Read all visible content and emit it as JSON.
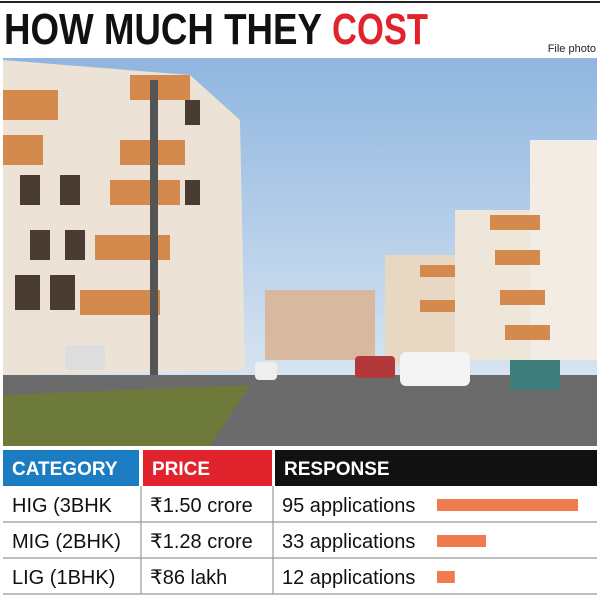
{
  "title": {
    "part1": "HOW MUCH THEY",
    "part2": "COST"
  },
  "photo_credit": "File photo",
  "table": {
    "headers": [
      "CATEGORY",
      "PRICE",
      "RESPONSE"
    ],
    "rows": [
      {
        "category": "HIG (3BHK",
        "price": "₹1.50 crore",
        "response": {
          "value": 95,
          "label": "95 applications"
        }
      },
      {
        "category": "MIG (2BHK)",
        "price": "₹1.28 crore",
        "response": {
          "value": 33,
          "label": "33 applications"
        }
      },
      {
        "category": "LIG (1BHK)",
        "price": "₹86 lakh",
        "response": {
          "value": 12,
          "label": "12 applications"
        }
      }
    ]
  }
}
